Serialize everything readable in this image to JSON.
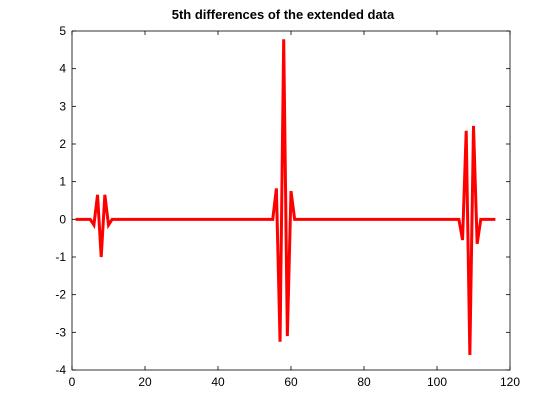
{
  "chart_data": {
    "type": "line",
    "title": "5th differences of the extended data",
    "xlabel": "",
    "ylabel": "",
    "xlim": [
      0,
      120
    ],
    "ylim": [
      -4,
      5
    ],
    "xticks": [
      0,
      20,
      40,
      60,
      80,
      100,
      120
    ],
    "yticks": [
      -4,
      -3,
      -2,
      -1,
      0,
      1,
      2,
      3,
      4,
      5
    ],
    "grid": false,
    "legend": "none",
    "series": [
      {
        "color": "#ff0000",
        "x": [
          1,
          5,
          6,
          7,
          8,
          9,
          10,
          11,
          55,
          56,
          57,
          58,
          59,
          60,
          61,
          106,
          107,
          108,
          109,
          110,
          111,
          112,
          116
        ],
        "y": [
          0,
          0,
          -0.15,
          0.65,
          -1.0,
          0.65,
          -0.15,
          0,
          0,
          0.82,
          -3.25,
          4.78,
          -3.1,
          0.75,
          0,
          0,
          -0.55,
          2.35,
          -3.6,
          2.48,
          -0.65,
          0,
          0
        ]
      }
    ]
  }
}
